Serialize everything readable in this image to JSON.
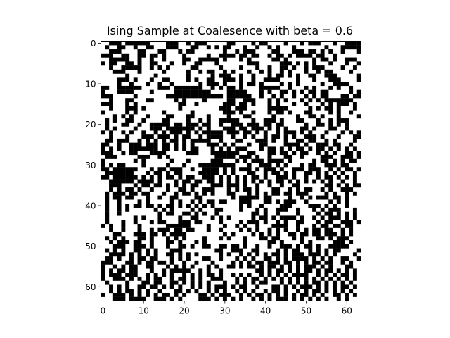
{
  "chart_data": {
    "type": "heatmap",
    "title": "Ising Sample at Coalesence with beta = 0.6",
    "xlabel": "",
    "ylabel": "",
    "grid_size": 64,
    "colormap": {
      "-1": "#000000",
      "1": "#ffffff"
    },
    "xlim": [
      -0.5,
      63.5
    ],
    "ylim": [
      63.5,
      -0.5
    ],
    "xticks": [
      0,
      10,
      20,
      30,
      40,
      50,
      60
    ],
    "yticks": [
      0,
      10,
      20,
      30,
      40,
      50,
      60
    ],
    "grid": false,
    "legend": false,
    "spin_rows": [
      "++---+------++++---++-+---+++++--++++-+--++++-+++-+---+++-++-----",
      "+-++--++-++--+++---+++--++-+-+--+++-++-++-+-+++-+++++++-+++-----+",
      "++---++++--+++--+++-+--+++++++-++-+---++++--+++---+--+-+-++-+++-+",
      "---++--++--+--+-++++-+++++-++----+--+--++-+--+-+----+--++-++++++",
      "++-----++-++-++-++++--++-----+-+++-+-+++++--+-++++++-+--+-++---+",
      "-+--++--+-++--+++-++-++--+++-+++++++---+++++---+-+-+-+++-+++-++-",
      "++-++-----++-+-+-+++++--+++++-++++-+++-++-++--+-++-+---++++-++-+",
      "+++---+++-+++++-+++++-++-+--++-+-+++-++-+-++-+-+++-++-+--++++-++",
      "++++++-++++++-+++++++-+++++-+---++-++-+++-+--+-+-++--++---+++++-",
      "++++---+-+++-++--++++-+-++--++---+-++-++----++++-+++-+++---++++-",
      "++++-++-+++-++-++-++++++-+---+-+++-+--+-++++-+-+-+++++-++----+++",
      "--++------++++---+-------++-+-+--+-++++-----++-+++-+-+++-+-++-++",
      "-+++----++++-+++++---------++++-----+++-+-++--+-+-+--+--+++++-+-",
      "---+++++-+++++++--------------+------++-++-+-++-++-+-+--+++--+--",
      "++-+++--+++--+++++-+-++++-+++++--++---+++-+-+-+++-+-+-+-------+",
      "---+++-+-++++++++++--++-++++++---+--+-+++-+-+++-++-+++-+-+---+-+",
      "++-+++---+-++++++++-+++++++++---+---+++++-----+++++-+-+--+-+++-+",
      "-+++++-+-++++++-++++++-+++++++---+-++-+++-+--+-+++--++++-+-++-++",
      "+++-+-+-+++-++++--+++--+++-++++-+++--+++++-+++++-++--+-+++-++++-",
      "+-+-++--++-++++--++++-++-+-++-----+++-++---+-+++--+++-++-+---+++",
      "+-+++--++-++-----+--+---+--++-++---+---+--+--+++++-++--+-+-+-+++",
      "+-+-++++-+++---+-------+-+-+++---+--+---+-+-+-+++--+-+++--++-+++",
      "-+-++-+-++-++-+-+---+-+-+-----+---+--+-+-++-+---+-+-+++-+++-+-+-",
      "++-+++-+++---+---+-+--++-+----++-++-+-++-+--+-+-++---+-+++-+++--",
      "+--+---++-+-+-+-+--+-+-----++-+++--+++---+-++-++--+--++-+-++++-+",
      "--++-++---+---+--+-+-+-+++---+-+-+++-++--++++----+-++---+--++-++",
      "-+-+-++-------+--+-+-+--+++-+-+-+---+++-+--+-+-+--+-+--+-+-+-+-+",
      "---++-+--+++----+++++---+++-------++--+++--+--+-+--++-+-+-++--+-",
      "+---+++++---++-+-+++++++++++-----+---+-++-+++--++-++++---++---+-",
      "-+++++++-+-++++++-+++-+++++---+++-+-+---+----+-+++++-+--+-+-+--+",
      "-+-+--++++-+++++-+++-+++---------+++-++---+-+-+++-+--++---+--+++",
      "--+------+++-+--+---++-++----+-+-+---+-+---+-++---+---++-+-+--+-",
      "+-------+++-+--+-+--++++-----+-+-+++--++-+--+-+-++--+-+-+-+-++-",
      "--+------+-+-+-+--+-+--++---+-+-+-+-+--+-++---+-++-++-+--+-+-+-+",
      "++------+----+-+++-+--+--+--+-+-+-+-+-+-+-+--+-+-+-+-+-+-++-++-+",
      "++---+++-+--+--+-+-+-+--+++---+---+-++-++-++-++--++++++--+-+-+--",
      "++-+-+--+-++-+++-++--+-++---+++-+-+--+-+++--++-+-+--++-+-++---++",
      "+-+---+--+--+++-++-+--+-+-+-+++--+++-+-+-+--+--+---++++-+-++-+-+",
      "+-+--+--+++-++-++--++++--+++++++-+-----+--++++-++-+-+---+--+-+++",
      "+-++-++++-+-+++++-+-++-+-+--+--+++---+++--+-+---++-+++++-+-+-++",
      "+-++-+-+--+--+-+--+-+-+-+-+-++++++-+-++-++++---++++---+-+-++-+++",
      "+-++-+-++++++-+-+-++++-+-+++--++++-+++-+-++---++-+++-+-+---+++-+",
      "+-++-+++++++++-+--++--+-+-++-++++++++--+-++-++++-++++-+--+-+-+-+",
      "+-++++++-+-+++-++++-++--+++-+-+-+++++-+--+-+----+-++-+-+---+-+-+",
      "+-+++-++-+++-+--+++---+--++++-++++-+---+-++-+-++--+++-+--++---+-",
      "-+-++-+++-++++++------++++-+++-++-+-++-+++----++-+++-+--+--+--++",
      "++-++-+++-++-+---+--+--+++-++-++++-+-+-++-+-+-++-+-+--+--++-+-++",
      "+++--+++---+--+-+----+++++++++-+-++++-+-+-+-++--+--+--+---+-+-++",
      "+-+-+-+++--+-+++-+-+-++++-+++-+-+++-+++--+--+++-+-+++--+-+---+++",
      "++-+---+--++-+++--+-+++-+-+++++++++-+++++--+-++++-+-+++++---+-++",
      "+++---++---+-+++-++--+-++--++--+--+-++-++-++---+-+--+-++-----+++",
      "+-+-+-++--+-+-+++---++++++++--++---++--++++-+-+--++-+-+-+--++++-",
      "++----+-+-+-+-++--+-+-+-+++++-+-++-+-+-+-+--+-+---+---+-+-++++-",
      "+--+-++-+--+--+++-+-+-+++--++-+++-+-+-++--+-+-+----+-+-+-++--++-",
      "---+++--+-+--+--+-++-++-+++-++++-+-+-+--+---+--+-+-+--+--++-+-+",
      "-++-+-+--++--+++-+-+-+-+++-+-++--+-+--+-+--+-+-+-+---+-+-+++--+",
      "-+-+--+--+++-++-+-----++-+-++-++++++++--+-+--+-+-+--+-+--+-+-+-",
      "-+---+---++-+-+-+-++-+-+-+--+-++-+-+-++-+-+-+-+----++-+-+-+--+-",
      "-++---+-+-+-+--++-+--+-+-++---+++-+-+--+-+-+-+-+-+-+-+-+-+-+-+-",
      "+-++++-+++--+--++--+-+-+-+-+++-++-+-+-+--+++-+-+-+-+--+-+-+-+-++",
      "++-+-+-++--+--+-+-+-++-+-+-+---+-+--++-+++--+-+-+---+-+-+-+--+-",
      "++-+-+--+-+-++-+++--+-+-++-+-+-++-+-+-++-+--+-++-+-+--+-+-+-+-+",
      "-++---+-+-+-+-+--+-+-+++--+-+---++-+-+--+-+-+-+-+--+-+-++--+-+-",
      "+++---+----++---+-+-++++---+-+-+-+-++-+-+-+---+-+-+-+-+-++-+-++"
    ]
  }
}
